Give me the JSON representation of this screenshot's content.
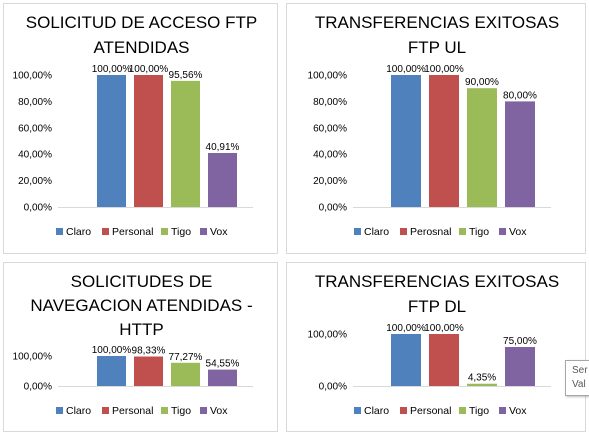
{
  "colors": {
    "Claro": "#4f81bd",
    "Personal": "#c0504d",
    "Perosnal": "#c0504d",
    "Tigo": "#9bbb59",
    "Vox": "#8064a2"
  },
  "chart_data": [
    {
      "type": "bar",
      "title": "SOLICITUD DE ACCESO FTP ATENDIDAS",
      "title_lines": [
        "SOLICITUD DE ACCESO FTP",
        "ATENDIDAS"
      ],
      "categories": [
        "Claro",
        "Personal",
        "Tigo",
        "Vox"
      ],
      "values": [
        100,
        100,
        95.56,
        40.91
      ],
      "value_labels": [
        "100,00%",
        "100,00%",
        "95,56%",
        "40,91%"
      ],
      "ylim": [
        0,
        100
      ],
      "yticks": [
        "0,00%",
        "20,00%",
        "40,00%",
        "60,00%",
        "80,00%",
        "100,00%"
      ],
      "legend": [
        "Claro",
        "Personal",
        "Tigo",
        "Vox"
      ],
      "legend_position": "bottom",
      "grid": false
    },
    {
      "type": "bar",
      "title": "TRANSFERENCIAS EXITOSAS FTP UL",
      "title_lines": [
        "TRANSFERENCIAS EXITOSAS",
        "FTP UL"
      ],
      "categories": [
        "Claro",
        "Perosnal",
        "Tigo",
        "Vox"
      ],
      "values": [
        100,
        100,
        90,
        80
      ],
      "value_labels": [
        "100,00%",
        "100,00%",
        "90,00%",
        "80,00%"
      ],
      "ylim": [
        0,
        100
      ],
      "yticks": [
        "0,00%",
        "20,00%",
        "40,00%",
        "60,00%",
        "80,00%",
        "100,00%"
      ],
      "legend": [
        "Claro",
        "Perosnal",
        "Tigo",
        "Vox"
      ],
      "legend_position": "bottom",
      "grid": false
    },
    {
      "type": "bar",
      "title": "SOLICITUDES DE NAVEGACION ATENDIDAS - HTTP",
      "title_lines": [
        "SOLICITUDES DE",
        "NAVEGACION ATENDIDAS -",
        "HTTP"
      ],
      "categories": [
        "Claro",
        "Personal",
        "Tigo",
        "Vox"
      ],
      "values": [
        100,
        98.33,
        77.27,
        54.55
      ],
      "value_labels": [
        "100,00%",
        "98,33%",
        "77,27%",
        "54,55%"
      ],
      "ylim": [
        0,
        100
      ],
      "yticks": [
        "0,00%",
        "100,00%"
      ],
      "legend": [
        "Claro",
        "Personal",
        "Tigo",
        "Vox"
      ],
      "legend_position": "bottom",
      "grid": false
    },
    {
      "type": "bar",
      "title": "TRANSFERENCIAS EXITOSAS FTP DL",
      "title_lines": [
        "TRANSFERENCIAS EXITOSAS",
        "FTP DL"
      ],
      "categories": [
        "Claro",
        "Personal",
        "Tigo",
        "Vox"
      ],
      "values": [
        100,
        100,
        4.35,
        75
      ],
      "value_labels": [
        "100,00%",
        "100,00%",
        "4,35%",
        "75,00%"
      ],
      "ylim": [
        0,
        100
      ],
      "yticks": [
        "0,00%",
        "100,00%"
      ],
      "legend": [
        "Claro",
        "Personal",
        "Tigo",
        "Vox"
      ],
      "legend_position": "bottom",
      "grid": false
    }
  ],
  "tooltip": {
    "line1": "Ser",
    "line2": "Val"
  }
}
